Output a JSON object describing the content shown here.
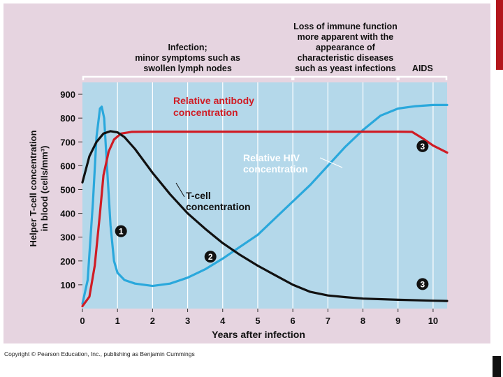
{
  "copyright": "Copyright © Pearson Education, Inc., publishing as Benjamin Cummings",
  "colors": {
    "page": "#e6d4e0",
    "plot": "#b4d8ea",
    "antibody": "#d01c24",
    "hiv": "#2aa8dc",
    "tcell": "#111111",
    "accent": "#b3161b"
  },
  "chart_data": {
    "type": "line",
    "xlabel": "Years after infection",
    "ylabel_line1": "Helper T-cell concentration",
    "ylabel_line2": "in blood (cells/mm³)",
    "xlim": [
      0,
      10.4
    ],
    "ylim": [
      0,
      950
    ],
    "x_ticks": [
      0,
      1,
      2,
      3,
      4,
      5,
      6,
      7,
      8,
      9,
      10
    ],
    "y_ticks": [
      100,
      200,
      300,
      400,
      500,
      600,
      700,
      800,
      900
    ],
    "phases": [
      {
        "lines": [
          "Infection;",
          "minor symptoms such as",
          "swollen lymph nodes"
        ],
        "x_start": 0,
        "x_end": 6
      },
      {
        "lines": [
          "Loss of immune function",
          "more apparent with the",
          "appearance of",
          "characteristic diseases",
          "such as yeast infections"
        ],
        "x_start": 6,
        "x_end": 9
      },
      {
        "lines": [
          "AIDS"
        ],
        "x_start": 9,
        "x_end": 10.4
      }
    ],
    "series": [
      {
        "name": "T-cell concentration",
        "label_lines": [
          "T-cell",
          "concentration"
        ],
        "x": [
          0,
          0.2,
          0.4,
          0.6,
          0.8,
          1.0,
          1.2,
          1.5,
          2.0,
          2.5,
          3.0,
          3.5,
          4.0,
          4.5,
          5.0,
          5.5,
          6.0,
          6.5,
          7.0,
          7.5,
          8.0,
          9.0,
          10.0,
          10.4
        ],
        "values": [
          530,
          640,
          700,
          735,
          745,
          740,
          720,
          670,
          570,
          480,
          400,
          335,
          275,
          225,
          180,
          140,
          100,
          70,
          55,
          48,
          42,
          37,
          33,
          32
        ]
      },
      {
        "name": "Relative antibody concentration",
        "label_lines": [
          "Relative antibody",
          "concentration"
        ],
        "x": [
          0,
          0.2,
          0.35,
          0.5,
          0.6,
          0.75,
          0.9,
          1.1,
          1.4,
          2,
          3,
          4,
          5,
          6,
          7,
          8,
          9,
          9.4,
          9.7,
          10,
          10.4
        ],
        "values": [
          10,
          50,
          180,
          400,
          560,
          660,
          710,
          735,
          742,
          743,
          743,
          743,
          743,
          743,
          743,
          743,
          743,
          742,
          715,
          685,
          655
        ]
      },
      {
        "name": "Relative HIV concentration",
        "label_lines": [
          "Relative HIV",
          "concentration"
        ],
        "x": [
          0,
          0.15,
          0.3,
          0.4,
          0.5,
          0.55,
          0.62,
          0.7,
          0.8,
          0.9,
          1.0,
          1.2,
          1.5,
          2.0,
          2.5,
          3.0,
          3.5,
          4.0,
          4.5,
          5.0,
          5.5,
          6.0,
          6.5,
          7.0,
          7.5,
          8.0,
          8.5,
          9.0,
          9.5,
          10.0,
          10.4
        ],
        "values": [
          20,
          120,
          450,
          720,
          840,
          848,
          800,
          600,
          350,
          200,
          150,
          120,
          105,
          95,
          105,
          130,
          165,
          210,
          260,
          310,
          380,
          450,
          520,
          600,
          680,
          750,
          810,
          840,
          850,
          855,
          855
        ]
      }
    ],
    "markers": [
      {
        "label": "1",
        "x": 1.1,
        "y": 325,
        "color": "tcell"
      },
      {
        "label": "2",
        "x": 3.65,
        "y": 218,
        "color": "tcell"
      },
      {
        "label": "3",
        "x": 9.7,
        "y": 682,
        "color": "tcell"
      },
      {
        "label": "3",
        "x": 9.7,
        "y": 103,
        "color": "tcell"
      }
    ]
  }
}
